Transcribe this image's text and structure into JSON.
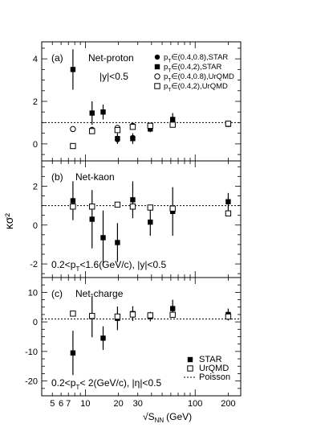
{
  "figure": {
    "ylabel": "κσ²",
    "xlabel": "√s_NN (GeV)",
    "xlabel_main": "√S",
    "xlabel_sub": "NN",
    "xlabel_unit": "(GeV)",
    "x_ticks": [
      "5",
      "6",
      "7",
      "10",
      "20",
      "30",
      "100",
      "200"
    ]
  },
  "chart_data": [
    {
      "type": "scatter",
      "panel_label": "(a)",
      "title": "Net-proton",
      "annotation": "|y|<0.5",
      "xscale": "log",
      "xlim": [
        4,
        260
      ],
      "ylim": [
        -0.8,
        4.8
      ],
      "y_ticks": [
        0,
        2,
        4
      ],
      "reference_line": {
        "name": "Poisson",
        "y": 1
      },
      "legend": [
        {
          "marker": "filled-circle",
          "text": "p_T∈(0.4,0.8),STAR"
        },
        {
          "marker": "filled-square",
          "text": "p_T∈(0.4,2),STAR"
        },
        {
          "marker": "open-circle",
          "text": "p_T∈(0.4,0.8),UrQMD"
        },
        {
          "marker": "open-square",
          "text": "p_T∈(0.4,2),UrQMD"
        }
      ],
      "series": [
        {
          "name": "p_T∈(0.4,0.8),STAR",
          "marker": "filled-circle",
          "x": [
            7.7,
            11.5,
            19.6,
            27,
            39,
            62.4,
            200
          ],
          "y": [
            0.68,
            0.68,
            0.2,
            0.3,
            0.77,
            1.0,
            0.92
          ],
          "err": [
            0.12,
            0.1,
            0.1,
            0.1,
            0.1,
            0.15,
            0.08
          ]
        },
        {
          "name": "p_T∈(0.4,2),STAR",
          "marker": "filled-square",
          "x": [
            7.7,
            11.5,
            14.5,
            19.6,
            27,
            39,
            62.4,
            200
          ],
          "y": [
            3.5,
            1.45,
            1.5,
            0.25,
            0.25,
            0.7,
            1.15,
            0.92
          ],
          "err": [
            0.95,
            0.55,
            0.35,
            0.25,
            0.25,
            0.15,
            0.3,
            0.08
          ]
        },
        {
          "name": "p_T∈(0.4,0.8),UrQMD",
          "marker": "open-circle",
          "x": [
            7.7,
            11.5,
            19.6,
            27,
            39,
            62.4,
            200
          ],
          "y": [
            0.7,
            0.65,
            0.75,
            0.85,
            0.85,
            0.92,
            0.95
          ],
          "err": [
            0,
            0,
            0,
            0,
            0,
            0,
            0
          ]
        },
        {
          "name": "p_T∈(0.4,2),UrQMD",
          "marker": "open-square",
          "x": [
            7.7,
            11.5,
            19.6,
            27,
            39,
            62.4,
            200
          ],
          "y": [
            -0.1,
            0.6,
            0.65,
            0.8,
            0.85,
            0.9,
            0.95
          ],
          "err": [
            0,
            0,
            0,
            0,
            0,
            0,
            0
          ]
        }
      ]
    },
    {
      "type": "scatter",
      "panel_label": "(b)",
      "title": "Net-kaon",
      "annotation": "0.2<p_T<1.6(GeV/c), |y|<0.5",
      "xscale": "log",
      "xlim": [
        4,
        260
      ],
      "ylim": [
        -2.7,
        3.3
      ],
      "y_ticks": [
        -2,
        0,
        2
      ],
      "reference_line": {
        "name": "Poisson",
        "y": 1
      },
      "series": [
        {
          "name": "STAR",
          "marker": "filled-square",
          "x": [
            7.7,
            11.5,
            14.5,
            19.6,
            27,
            39,
            62.4,
            200
          ],
          "y": [
            1.25,
            0.3,
            -0.65,
            -0.9,
            1.3,
            0.15,
            0.7,
            1.2
          ],
          "err": [
            1.0,
            1.5,
            1.4,
            1.0,
            0.95,
            0.7,
            1.25,
            0.45
          ]
        },
        {
          "name": "UrQMD",
          "marker": "open-square",
          "x": [
            7.7,
            11.5,
            19.6,
            27,
            39,
            62.4,
            200
          ],
          "y": [
            0.95,
            0.95,
            1.05,
            0.95,
            0.9,
            0.85,
            0.6
          ],
          "err": [
            0,
            0,
            0,
            0,
            0,
            0,
            0
          ]
        }
      ]
    },
    {
      "type": "scatter",
      "panel_label": "(c)",
      "title": "Net-charge",
      "annotation": "0.2<p_T< 2(GeV/c), |η|<0.5",
      "xscale": "log",
      "xlim": [
        4,
        260
      ],
      "ylim": [
        -25,
        15
      ],
      "y_ticks": [
        -20,
        -10,
        0,
        10
      ],
      "reference_line": {
        "name": "Poisson",
        "y": 1
      },
      "legend": [
        {
          "marker": "filled-square",
          "text": "STAR"
        },
        {
          "marker": "open-square",
          "text": "UrQMD"
        },
        {
          "marker": "dashed-line",
          "text": "Poisson"
        }
      ],
      "series": [
        {
          "name": "STAR",
          "marker": "filled-square",
          "x": [
            7.7,
            11.5,
            14.5,
            19.6,
            27,
            39,
            62.4,
            200
          ],
          "y": [
            -10.5,
            1.8,
            -5.5,
            1.2,
            2.8,
            1.8,
            4.5,
            2.5
          ],
          "err": [
            7.5,
            7.0,
            4.0,
            4.0,
            2.5,
            1.6,
            3.0,
            2.0
          ]
        },
        {
          "name": "UrQMD",
          "marker": "open-square",
          "x": [
            7.7,
            11.5,
            19.6,
            27,
            39,
            62.4,
            200
          ],
          "y": [
            2.8,
            2.0,
            1.8,
            2.5,
            2.2,
            2.4,
            1.8
          ],
          "err": [
            0,
            0,
            0,
            0,
            0,
            0,
            0
          ]
        }
      ]
    }
  ]
}
